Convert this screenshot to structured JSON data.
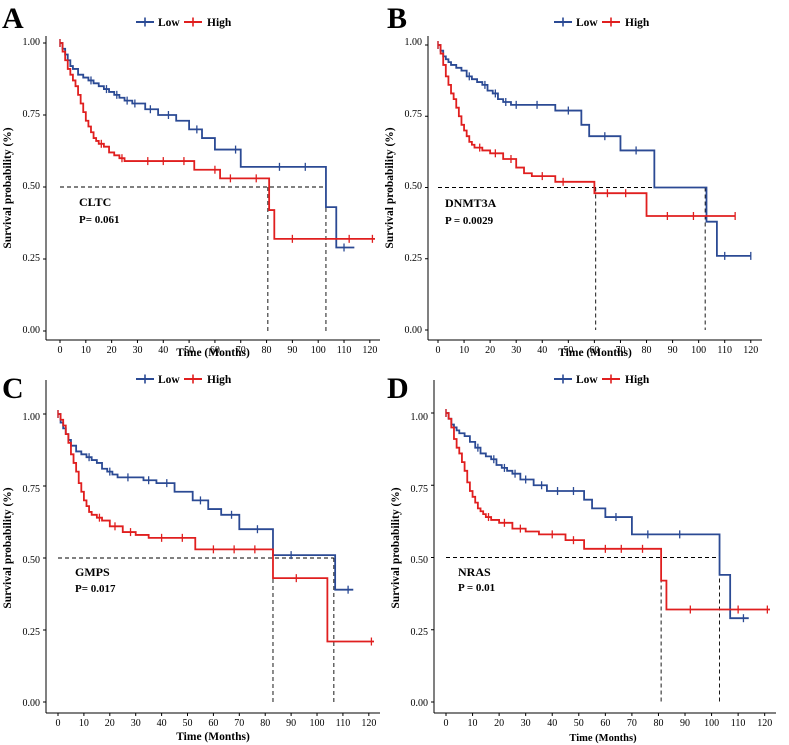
{
  "chart_data": [
    {
      "type": "line",
      "panel": "A",
      "gene": "CLTC",
      "pvalue": "P= 0.061",
      "xlabel": "Time (Months)",
      "ylabel": "Survival probability (%)",
      "xlim": [
        0,
        122
      ],
      "ylim": [
        0,
        1.0
      ],
      "xticks": [
        0,
        10,
        20,
        30,
        40,
        50,
        60,
        70,
        80,
        90,
        100,
        110,
        120
      ],
      "yticks": [
        "0.00",
        "0.25",
        "0.50",
        "0.75",
        "1.00"
      ],
      "legend": [
        "Low",
        "High"
      ],
      "median_times": [
        80.5,
        103
      ],
      "series": [
        {
          "name": "Low",
          "color": "#2b4a94",
          "x": [
            0,
            1,
            2,
            3,
            4,
            5,
            7,
            9,
            11,
            13,
            15,
            17,
            19,
            21,
            23,
            25,
            28,
            33,
            38,
            45,
            50,
            55,
            60,
            70,
            80,
            103,
            107,
            114
          ],
          "y": [
            1.0,
            0.98,
            0.96,
            0.94,
            0.92,
            0.91,
            0.89,
            0.88,
            0.87,
            0.86,
            0.85,
            0.84,
            0.83,
            0.82,
            0.81,
            0.8,
            0.79,
            0.77,
            0.75,
            0.73,
            0.7,
            0.67,
            0.63,
            0.57,
            0.57,
            0.43,
            0.29,
            0.29
          ],
          "censor_x": [
            12,
            18,
            22,
            26,
            29,
            35,
            42,
            53,
            68,
            85,
            95,
            110
          ]
        },
        {
          "name": "High",
          "color": "#e01f1f",
          "x": [
            0,
            1,
            2,
            3,
            4,
            5,
            6,
            7,
            8,
            9,
            10,
            11,
            12,
            13,
            14,
            15,
            17,
            19,
            21,
            23,
            25,
            28,
            32,
            36,
            45,
            52,
            57,
            62,
            70,
            80,
            81,
            83,
            122
          ],
          "y": [
            1.0,
            0.97,
            0.94,
            0.91,
            0.89,
            0.87,
            0.85,
            0.82,
            0.79,
            0.76,
            0.73,
            0.71,
            0.69,
            0.67,
            0.66,
            0.65,
            0.64,
            0.62,
            0.61,
            0.6,
            0.59,
            0.59,
            0.59,
            0.59,
            0.59,
            0.56,
            0.56,
            0.53,
            0.53,
            0.53,
            0.42,
            0.32,
            0.32
          ],
          "censor_x": [
            16,
            24,
            34,
            40,
            48,
            60,
            66,
            76,
            90,
            112,
            121
          ]
        }
      ]
    },
    {
      "type": "line",
      "panel": "B",
      "gene": "DNMT3A",
      "pvalue": "P = 0.0029",
      "xlabel": "Time (Months)",
      "ylabel": "Survival probability (%)",
      "xlim": [
        0,
        122
      ],
      "ylim": [
        0,
        1.0
      ],
      "xticks": [
        0,
        10,
        20,
        30,
        40,
        50,
        60,
        70,
        80,
        90,
        100,
        110,
        120
      ],
      "yticks": [
        "0.00",
        "0.25",
        "0.50",
        "0.75",
        "1.00"
      ],
      "legend": [
        "Low",
        "High"
      ],
      "median_times": [
        60.5,
        102.5
      ],
      "series": [
        {
          "name": "Low",
          "color": "#2b4a94",
          "x": [
            0,
            1,
            2,
            3,
            4,
            5,
            7,
            9,
            11,
            13,
            15,
            17,
            19,
            21,
            23,
            25,
            28,
            33,
            45,
            55,
            58,
            70,
            83,
            103,
            107,
            120
          ],
          "y": [
            1.0,
            0.98,
            0.96,
            0.95,
            0.94,
            0.93,
            0.92,
            0.91,
            0.89,
            0.88,
            0.87,
            0.86,
            0.84,
            0.83,
            0.81,
            0.8,
            0.79,
            0.79,
            0.77,
            0.72,
            0.68,
            0.63,
            0.5,
            0.38,
            0.26,
            0.26
          ],
          "censor_x": [
            12,
            18,
            22,
            26,
            30,
            38,
            50,
            64,
            76,
            110,
            120
          ]
        },
        {
          "name": "High",
          "color": "#e01f1f",
          "x": [
            0,
            1,
            2,
            3,
            4,
            5,
            6,
            7,
            8,
            9,
            10,
            11,
            12,
            13,
            14,
            15,
            17,
            20,
            25,
            30,
            33,
            36,
            45,
            60,
            80,
            114
          ],
          "y": [
            1.0,
            0.97,
            0.93,
            0.89,
            0.86,
            0.83,
            0.81,
            0.78,
            0.75,
            0.72,
            0.7,
            0.68,
            0.66,
            0.65,
            0.64,
            0.64,
            0.63,
            0.62,
            0.6,
            0.57,
            0.55,
            0.54,
            0.52,
            0.48,
            0.4,
            0.4
          ],
          "censor_x": [
            16,
            22,
            28,
            40,
            48,
            65,
            72,
            88,
            98,
            114
          ]
        }
      ]
    },
    {
      "type": "line",
      "panel": "C",
      "gene": "GMPS",
      "pvalue": "P= 0.017",
      "xlabel": "Time (Months)",
      "ylabel": "Survival probability (%)",
      "xlim": [
        0,
        122
      ],
      "ylim": [
        0,
        1.0
      ],
      "xticks": [
        0,
        10,
        20,
        30,
        40,
        50,
        60,
        70,
        80,
        90,
        100,
        110,
        120
      ],
      "yticks": [
        "0.00",
        "0.25",
        "0.50",
        "0.75",
        "1.00"
      ],
      "legend": [
        "Low",
        "High"
      ],
      "median_times": [
        83,
        106.5
      ],
      "series": [
        {
          "name": "Low",
          "color": "#2b4a94",
          "x": [
            0,
            1,
            2,
            3,
            4,
            5,
            7,
            9,
            11,
            13,
            15,
            17,
            19,
            21,
            23,
            25,
            33,
            38,
            45,
            52,
            58,
            63,
            70,
            83,
            107,
            114
          ],
          "y": [
            1.0,
            0.97,
            0.95,
            0.93,
            0.91,
            0.89,
            0.87,
            0.86,
            0.85,
            0.84,
            0.83,
            0.81,
            0.8,
            0.79,
            0.78,
            0.78,
            0.77,
            0.76,
            0.73,
            0.7,
            0.67,
            0.65,
            0.6,
            0.51,
            0.39,
            0.39
          ],
          "censor_x": [
            12,
            20,
            27,
            35,
            42,
            55,
            67,
            77,
            90,
            112
          ]
        },
        {
          "name": "High",
          "color": "#e01f1f",
          "x": [
            0,
            1,
            2,
            3,
            4,
            5,
            6,
            7,
            8,
            9,
            10,
            11,
            12,
            13,
            14,
            15,
            17,
            20,
            25,
            30,
            35,
            53,
            83,
            104,
            122
          ],
          "y": [
            1.0,
            0.98,
            0.96,
            0.93,
            0.9,
            0.86,
            0.83,
            0.8,
            0.76,
            0.73,
            0.7,
            0.68,
            0.66,
            0.65,
            0.65,
            0.64,
            0.63,
            0.61,
            0.59,
            0.58,
            0.57,
            0.53,
            0.43,
            0.21,
            0.21
          ],
          "censor_x": [
            16,
            22,
            28,
            40,
            48,
            60,
            68,
            76,
            92,
            121
          ]
        }
      ]
    },
    {
      "type": "line",
      "panel": "D",
      "gene": "NRAS",
      "pvalue": "P = 0.01",
      "xlabel": "Time (Months)",
      "ylabel": "Survival probability (%)",
      "xlim": [
        0,
        122
      ],
      "ylim": [
        0,
        1.0
      ],
      "xticks": [
        0,
        10,
        20,
        30,
        40,
        50,
        60,
        70,
        80,
        90,
        100,
        110,
        120
      ],
      "yticks": [
        "0.00",
        "0.25",
        "0.50",
        "0.75",
        "1.00"
      ],
      "legend": [
        "Low",
        "High"
      ],
      "median_times": [
        81,
        103
      ],
      "series": [
        {
          "name": "Low",
          "color": "#2b4a94",
          "x": [
            0,
            1,
            2,
            3,
            4,
            5,
            7,
            9,
            11,
            13,
            15,
            17,
            19,
            21,
            23,
            25,
            28,
            33,
            38,
            52,
            55,
            60,
            70,
            103,
            107,
            114
          ],
          "y": [
            1.0,
            0.98,
            0.96,
            0.95,
            0.94,
            0.93,
            0.92,
            0.9,
            0.88,
            0.86,
            0.85,
            0.84,
            0.82,
            0.81,
            0.8,
            0.79,
            0.77,
            0.75,
            0.73,
            0.7,
            0.67,
            0.64,
            0.58,
            0.44,
            0.29,
            0.29
          ],
          "censor_x": [
            12,
            18,
            22,
            26,
            30,
            36,
            42,
            48,
            64,
            76,
            88,
            112
          ]
        },
        {
          "name": "High",
          "color": "#e01f1f",
          "x": [
            0,
            1,
            2,
            3,
            4,
            5,
            6,
            7,
            8,
            9,
            10,
            11,
            12,
            13,
            14,
            15,
            17,
            20,
            25,
            30,
            35,
            45,
            52,
            80,
            81,
            83,
            122
          ],
          "y": [
            1.0,
            0.98,
            0.95,
            0.91,
            0.88,
            0.86,
            0.83,
            0.8,
            0.76,
            0.73,
            0.71,
            0.69,
            0.67,
            0.66,
            0.65,
            0.64,
            0.63,
            0.62,
            0.6,
            0.59,
            0.58,
            0.56,
            0.53,
            0.53,
            0.42,
            0.32,
            0.32
          ],
          "censor_x": [
            16,
            22,
            28,
            40,
            48,
            60,
            66,
            74,
            92,
            110,
            121
          ]
        }
      ]
    }
  ]
}
